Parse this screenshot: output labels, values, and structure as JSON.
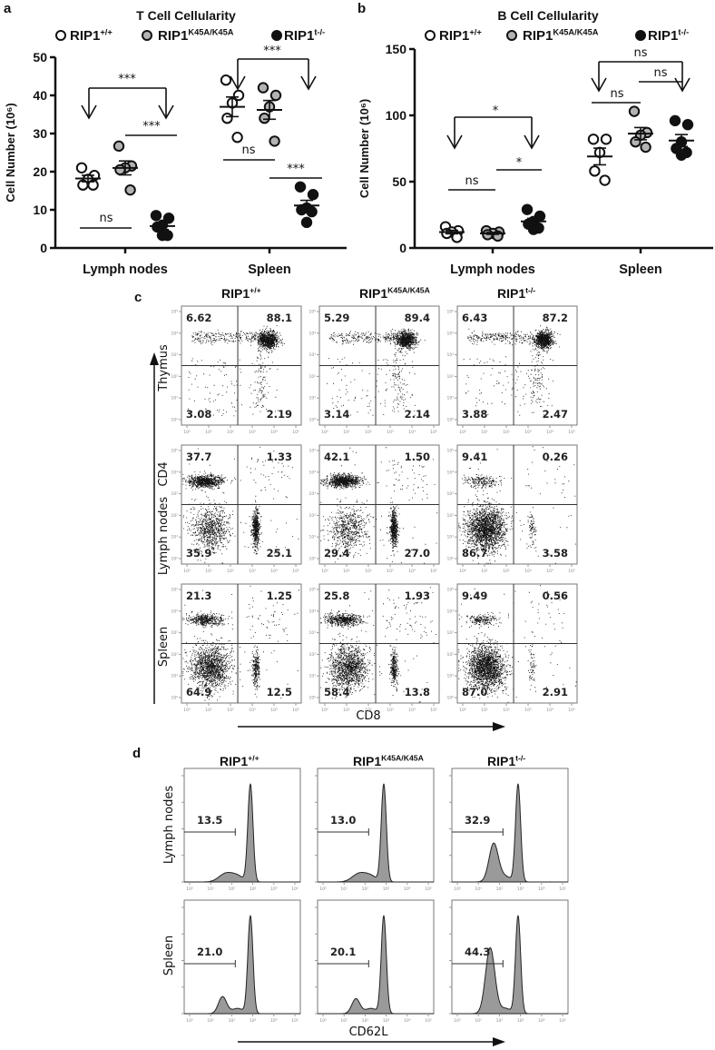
{
  "genotypes": [
    {
      "base": "RIP1",
      "sup": "+/+"
    },
    {
      "base": "RIP1",
      "sup": "K45A/K45A"
    },
    {
      "base": "RIP1",
      "sup": "t-/-"
    }
  ],
  "chart_data": [
    {
      "panel_label": "a",
      "type": "scatter",
      "title": "T Cell Cellularity",
      "ylabel": "Cell Number (10⁶)",
      "xlabel": "",
      "categories": [
        "Lymph nodes",
        "Spleen"
      ],
      "ylim": [
        0,
        50
      ],
      "yticks": [
        "0",
        "10",
        "20",
        "30",
        "40",
        "50"
      ],
      "legend_position": "top",
      "series": [
        {
          "name_base": "RIP1",
          "name_sup": "+/+",
          "fill": "#ffffff",
          "values": [
            [
              21,
              19,
              18,
              16.5,
              16.5
            ],
            [
              44,
              40,
              38,
              34,
              29
            ]
          ]
        },
        {
          "name_base": "RIP1",
          "name_sup": "K45A/K45A",
          "fill": "#b3b3b3",
          "values": [
            [
              26.7,
              21.5,
              21,
              20.5,
              15.2
            ],
            [
              42,
              40,
              37,
              34,
              28
            ]
          ]
        },
        {
          "name_base": "RIP1",
          "name_sup": "t-/-",
          "fill": "#111111",
          "values": [
            [
              8.5,
              7.8,
              6,
              5.5,
              3.3,
              3.3
            ],
            [
              16,
              14,
              10.5,
              10,
              9.5,
              6.7
            ]
          ]
        }
      ],
      "significance": [
        {
          "label": "***",
          "category": "Lymph nodes",
          "compare": [
            "RIP1+/+",
            "RIP1t-/-"
          ]
        },
        {
          "label": "***",
          "category": "Lymph nodes",
          "compare": [
            "RIP1K45A/K45A",
            "RIP1t-/-"
          ]
        },
        {
          "label": "ns",
          "category": "Lymph nodes",
          "compare": [
            "RIP1+/+",
            "RIP1K45A/K45A"
          ]
        },
        {
          "label": "***",
          "category": "Spleen",
          "compare": [
            "RIP1+/+",
            "RIP1t-/-"
          ]
        },
        {
          "label": "ns",
          "category": "Spleen",
          "compare": [
            "RIP1+/+",
            "RIP1K45A/K45A"
          ]
        },
        {
          "label": "***",
          "category": "Spleen",
          "compare": [
            "RIP1K45A/K45A",
            "RIP1t-/-"
          ]
        }
      ]
    },
    {
      "panel_label": "b",
      "type": "scatter",
      "title": "B Cell Cellularity",
      "ylabel": "Cell Number (10⁶)",
      "xlabel": "",
      "categories": [
        "Lymph nodes",
        "Spleen"
      ],
      "ylim": [
        0,
        150
      ],
      "yticks": [
        "0",
        "50",
        "100",
        "150"
      ],
      "legend_position": "top",
      "series": [
        {
          "name_base": "RIP1",
          "name_sup": "+/+",
          "fill": "#ffffff",
          "values": [
            [
              16,
              13,
              12,
              11,
              8
            ],
            [
              82,
              82,
              72,
              58,
              51
            ]
          ]
        },
        {
          "name_base": "RIP1",
          "name_sup": "K45A/K45A",
          "fill": "#b3b3b3",
          "values": [
            [
              13,
              12,
              11,
              10,
              9
            ],
            [
              103,
              87,
              85,
              80,
              76
            ]
          ]
        },
        {
          "name_base": "RIP1",
          "name_sup": "t-/-",
          "fill": "#111111",
          "values": [
            [
              29,
              24,
              20,
              18,
              15,
              14
            ],
            [
              96,
              93,
              80,
              75,
              72,
              70
            ]
          ]
        }
      ],
      "significance": [
        {
          "label": "*",
          "category": "Lymph nodes",
          "compare": [
            "RIP1+/+",
            "RIP1t-/-"
          ]
        },
        {
          "label": "*",
          "category": "Lymph nodes",
          "compare": [
            "RIP1K45A/K45A",
            "RIP1t-/-"
          ]
        },
        {
          "label": "ns",
          "category": "Lymph nodes",
          "compare": [
            "RIP1+/+",
            "RIP1K45A/K45A"
          ]
        },
        {
          "label": "ns",
          "category": "Spleen",
          "compare": [
            "RIP1+/+",
            "RIP1t-/-"
          ]
        },
        {
          "label": "ns",
          "category": "Spleen",
          "compare": [
            "RIP1+/+",
            "RIP1K45A/K45A"
          ]
        },
        {
          "label": "ns",
          "category": "Spleen",
          "compare": [
            "RIP1K45A/K45A",
            "RIP1t-/-"
          ]
        }
      ]
    }
  ],
  "panel_c": {
    "label": "c",
    "rows": [
      "Thymus",
      "Lymph nodes",
      "Spleen"
    ],
    "y_axis": "CD4",
    "x_axis": "CD8",
    "axis_ticks": [
      "10⁰",
      "10¹",
      "10²",
      "10³",
      "10⁴",
      "10⁵"
    ],
    "quadrants": [
      [
        [
          "6.62",
          "88.1",
          "3.08",
          "2.19"
        ],
        [
          "5.29",
          "89.4",
          "3.14",
          "2.14"
        ],
        [
          "6.43",
          "87.2",
          "3.88",
          "2.47"
        ]
      ],
      [
        [
          "37.7",
          "1.33",
          "35.9",
          "25.1"
        ],
        [
          "42.1",
          "1.50",
          "29.4",
          "27.0"
        ],
        [
          "9.41",
          "0.26",
          "86.7",
          "3.58"
        ]
      ],
      [
        [
          "21.3",
          "1.25",
          "64.9",
          "12.5"
        ],
        [
          "25.8",
          "1.93",
          "58.4",
          "13.8"
        ],
        [
          "9.49",
          "0.56",
          "87.0",
          "2.91"
        ]
      ]
    ]
  },
  "panel_d": {
    "label": "d",
    "rows": [
      "Lymph nodes",
      "Spleen"
    ],
    "x_axis": "CD62L",
    "axis_ticks": [
      "10⁰",
      "10¹",
      "10²",
      "10³",
      "10⁴",
      "10⁵"
    ],
    "gates": [
      [
        "13.5",
        "13.0",
        "32.9"
      ],
      [
        "21.0",
        "20.1",
        "44.3"
      ]
    ],
    "histogram_fill": "#9a9a9a"
  }
}
